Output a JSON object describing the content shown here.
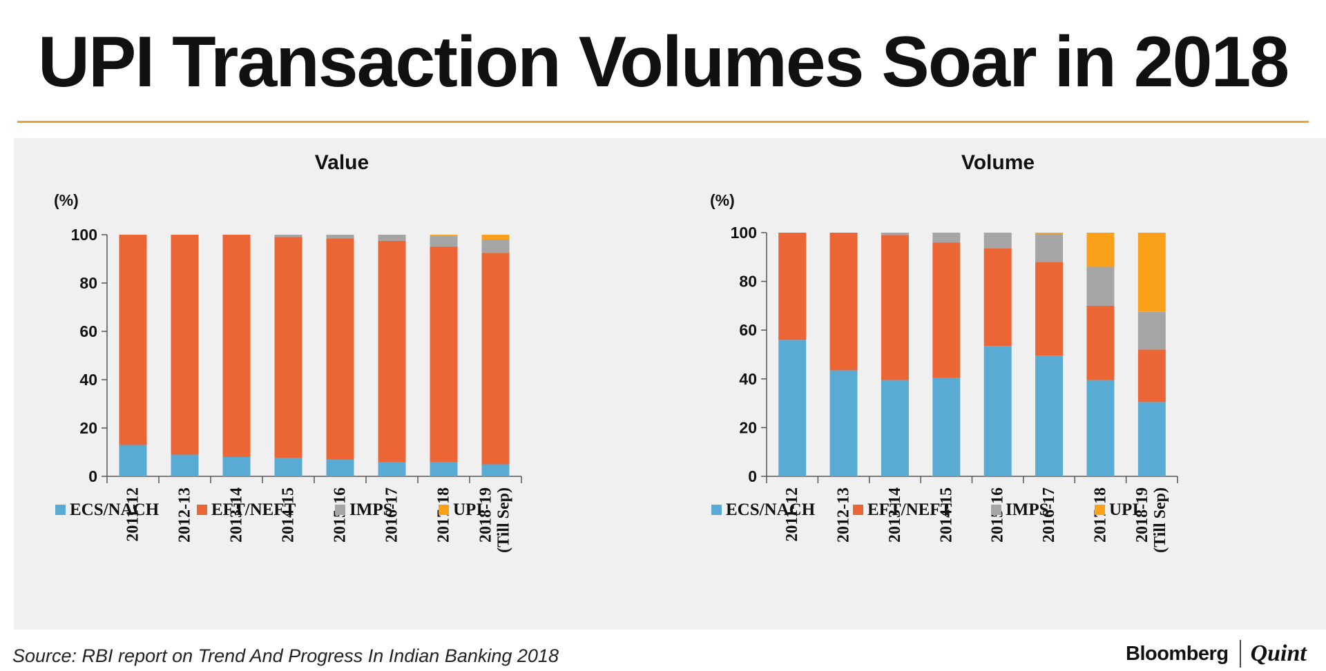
{
  "title": "UPI Transaction Volumes Soar in 2018",
  "source": "Source: RBI report on Trend And Progress In Indian Banking 2018",
  "brand": {
    "primary": "Bloomberg",
    "secondary": "Quint"
  },
  "colors": {
    "ECS/NACH": "#5aabd3",
    "EFT/NEFT": "#ec6535",
    "IMPS": "#a5a5a5",
    "UPI": "#fba119",
    "rule": "#f0a030"
  },
  "chart_data": [
    {
      "type": "bar",
      "stacked": true,
      "title": "Value",
      "ylabel": "(%)",
      "ylim": [
        0,
        100
      ],
      "yticks": [
        0,
        20,
        40,
        60,
        80,
        100
      ],
      "categories": [
        "2011-12",
        "2012-13",
        "2013-14",
        "2014-15",
        "2015-16",
        "2016-17",
        "2017-18",
        "2018-19 (Till Sep)"
      ],
      "series": [
        {
          "name": "ECS/NACH",
          "values": [
            13,
            9,
            8,
            7.5,
            7,
            6,
            6,
            5
          ]
        },
        {
          "name": "EFT/NEFT",
          "values": [
            87,
            91,
            92,
            91.5,
            91.5,
            91.5,
            89,
            87.5
          ]
        },
        {
          "name": "IMPS",
          "values": [
            0,
            0,
            0,
            1,
            1.5,
            2.5,
            4.5,
            5.5
          ]
        },
        {
          "name": "UPI",
          "values": [
            0,
            0,
            0,
            0,
            0,
            0,
            0.5,
            2
          ]
        }
      ],
      "legend": [
        "ECS/NACH",
        "EFT/NEFT",
        "IMPS",
        "UPI"
      ],
      "legend_position": "bottom"
    },
    {
      "type": "bar",
      "stacked": true,
      "title": "Volume",
      "ylabel": "(%)",
      "ylim": [
        0,
        100
      ],
      "yticks": [
        0,
        20,
        40,
        60,
        80,
        100
      ],
      "categories": [
        "2011-12",
        "2012-13",
        "2013-14",
        "2014-15",
        "2015-16",
        "2016-17",
        "2017-18",
        "2018-19 (Till Sep)"
      ],
      "series": [
        {
          "name": "ECS/NACH",
          "values": [
            56,
            43.5,
            39.5,
            40.5,
            53.5,
            49.5,
            39.5,
            30.5
          ]
        },
        {
          "name": "EFT/NEFT",
          "values": [
            44,
            56.5,
            59.5,
            55.5,
            40,
            38.5,
            30.5,
            21.5
          ]
        },
        {
          "name": "IMPS",
          "values": [
            0,
            0,
            1,
            4,
            6.5,
            11.5,
            16,
            15.5
          ]
        },
        {
          "name": "UPI",
          "values": [
            0,
            0,
            0,
            0,
            0,
            0.5,
            14,
            32.5
          ]
        }
      ],
      "legend": [
        "ECS/NACH",
        "EFT/NEFT",
        "IMPS",
        "UPI"
      ],
      "legend_position": "bottom"
    }
  ]
}
